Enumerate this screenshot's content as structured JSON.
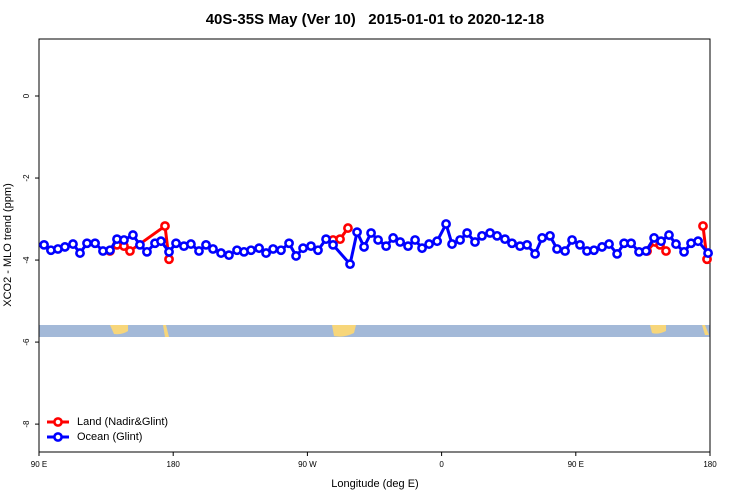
{
  "chart_data": {
    "type": "line",
    "title": "40S-35S May (Ver 10)   2015-01-01 to 2020-12-18",
    "xlabel": "Longitude (deg E)",
    "ylabel": "XCO2 - MLO trend (ppm)",
    "xlim": [
      90,
      540
    ],
    "ylim": [
      -8.68,
      1.39
    ],
    "xticks": [
      {
        "value": 90,
        "label": "90 E"
      },
      180,
      {
        "value": 270,
        "label": "90 W"
      },
      {
        "value": 360,
        "label": "0"
      },
      {
        "value": 450,
        "label": "90 E"
      },
      {
        "value": 540,
        "label": "180"
      }
    ],
    "yticks": [
      0,
      -2,
      -4,
      -6,
      -8
    ],
    "legend": "bottom-left",
    "series": [
      {
        "name": "Land (Nadir&Glint)",
        "color": "#ff0000",
        "x": [
          137.6,
          142.3,
          147.0,
          151.0,
          174.5,
          177.2,
          220.0,
          287.2,
          291.9,
          297.2,
          400.0,
          497.8,
          503.2,
          506.5,
          510.5,
          520.0,
          535.3,
          538.0
        ],
        "values": [
          -3.78,
          -3.63,
          -3.66,
          -3.78,
          -3.17,
          -3.98,
          null,
          -3.51,
          -3.49,
          -3.22,
          null,
          -3.78,
          -3.56,
          -3.63,
          -3.78,
          null,
          -3.17,
          -3.98
        ]
      },
      {
        "name": "Ocean (Glint)",
        "color": "#0000ff",
        "x": [
          93.4,
          98.0,
          102.7,
          107.4,
          112.8,
          117.5,
          122.2,
          127.6,
          132.9,
          137.6,
          142.3,
          147.0,
          153.0,
          157.7,
          162.4,
          167.8,
          171.8,
          177.2,
          181.9,
          187.2,
          191.9,
          197.3,
          202.0,
          206.7,
          212.1,
          217.4,
          222.8,
          227.5,
          232.2,
          237.6,
          242.3,
          247.0,
          252.3,
          257.7,
          262.4,
          267.1,
          272.4,
          277.1,
          282.5,
          287.2,
          298.6,
          303.3,
          308.0,
          312.7,
          317.4,
          322.8,
          327.5,
          332.2,
          337.5,
          342.2,
          346.9,
          351.6,
          357.0,
          363.0,
          367.0,
          372.4,
          377.1,
          382.4,
          387.1,
          392.5,
          397.2,
          402.5,
          407.2,
          412.6,
          417.3,
          422.7,
          427.4,
          432.7,
          437.4,
          442.8,
          447.5,
          452.8,
          457.5,
          462.2,
          467.6,
          472.3,
          477.7,
          482.4,
          487.1,
          492.4,
          497.1,
          502.5,
          507.2,
          512.5,
          517.2,
          522.6,
          527.3,
          532.0,
          538.7
        ],
        "values": [
          -3.63,
          -3.76,
          -3.73,
          -3.68,
          -3.61,
          -3.83,
          -3.59,
          -3.59,
          -3.78,
          -3.76,
          -3.49,
          -3.51,
          -3.39,
          -3.63,
          -3.8,
          -3.59,
          -3.54,
          -3.8,
          -3.59,
          -3.66,
          -3.61,
          -3.78,
          -3.63,
          -3.73,
          -3.83,
          -3.88,
          -3.76,
          -3.8,
          -3.76,
          -3.71,
          -3.83,
          -3.73,
          -3.76,
          -3.59,
          -3.9,
          -3.71,
          -3.66,
          -3.76,
          -3.49,
          -3.63,
          -4.1,
          -3.32,
          -3.68,
          -3.34,
          -3.51,
          -3.66,
          -3.46,
          -3.56,
          -3.66,
          -3.51,
          -3.71,
          -3.61,
          -3.54,
          -3.12,
          -3.61,
          -3.51,
          -3.34,
          -3.56,
          -3.41,
          -3.34,
          -3.41,
          -3.49,
          -3.59,
          -3.66,
          -3.63,
          -3.85,
          -3.46,
          -3.41,
          -3.73,
          -3.78,
          -3.51,
          -3.63,
          -3.78,
          -3.76,
          -3.68,
          -3.61,
          -3.85,
          -3.59,
          -3.59,
          -3.8,
          -3.78,
          -3.46,
          -3.54,
          -3.39,
          -3.61,
          -3.8,
          -3.59,
          -3.54,
          -3.83
        ]
      }
    ]
  }
}
